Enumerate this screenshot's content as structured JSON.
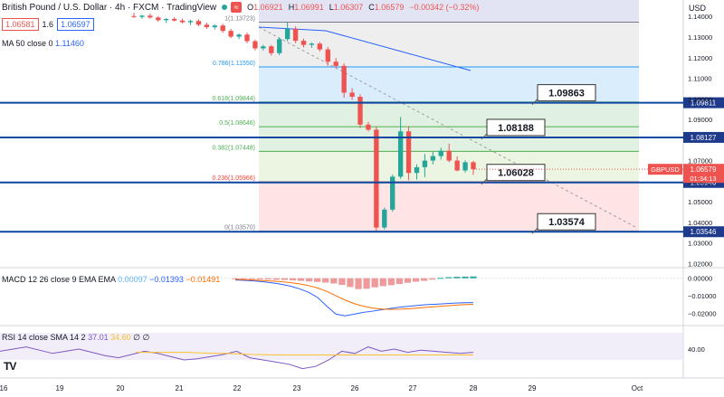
{
  "header": {
    "title": "British Pound / U.S. Dollar · 4h · FXCM · TradingView",
    "spread_icon": "spread-icon",
    "ohlc": [
      {
        "label": "O",
        "value": "1.06921"
      },
      {
        "label": "H",
        "value": "1.06991"
      },
      {
        "label": "L",
        "value": "1.06307"
      },
      {
        "label": "C",
        "value": "1.06579"
      },
      {
        "label": "",
        "value": "−0.00342 (−0.32%)"
      }
    ],
    "currency": "USD"
  },
  "trade_boxes": {
    "sell": "1.06581",
    "spread": "1.6",
    "buy": "1.06597"
  },
  "indicators": {
    "ma": {
      "label": "MA 50 close 0",
      "value": "1.11460"
    },
    "macd": {
      "label": "MACD 12 26 close 9 EMA EMA",
      "hist": "0.00097",
      "macd": "−0.01393",
      "signal": "−0.01491"
    },
    "rsi": {
      "label": "RSI 14 close SMA 14 2",
      "rsi": "37.01",
      "sma": "34.60",
      "extra1": "∅",
      "extra2": "∅"
    }
  },
  "logo": "TV",
  "chart_data": {
    "type": "candlestick",
    "symbol": "GBPUSD",
    "x_ticks": [
      "16",
      "19",
      "20",
      "21",
      "22",
      "23",
      "26",
      "27",
      "28",
      "29",
      "Oct"
    ],
    "y_ticks": [
      "1.14000",
      "1.13000",
      "1.12000",
      "1.11000",
      "1.10000",
      "1.09000",
      "1.07000",
      "1.06000",
      "1.05000",
      "1.04000",
      "1.03000",
      "1.02000"
    ],
    "current_price": {
      "label": "GBPUSD",
      "value": "1.06579",
      "countdown": "01:34:13"
    },
    "horizontal_levels": [
      "1.09811",
      "1.08127",
      "1.05940",
      "1.03546"
    ],
    "callouts": [
      "1.09863",
      "1.08188",
      "1.06028",
      "1.03574"
    ],
    "fib_levels": [
      {
        "label": "1(1.13723)",
        "value": 1.13723,
        "color": "#787b86"
      },
      {
        "label": "0.786(1.11550)",
        "value": 1.1155,
        "color": "#2196f3"
      },
      {
        "label": "0.618(1.09844)",
        "value": 1.09844,
        "color": "#4caf50"
      },
      {
        "label": "0.5(1.08646)",
        "value": 1.08646,
        "color": "#4caf50"
      },
      {
        "label": "0.382(1.07448)",
        "value": 1.07448,
        "color": "#4caf50"
      },
      {
        "label": "0.236(1.05966)",
        "value": 1.05966,
        "color": "#f44336"
      },
      {
        "label": "0(1.03570)",
        "value": 1.0357,
        "color": "#787b86"
      }
    ],
    "ylim": [
      1.018,
      1.148
    ],
    "candles": [
      [
        1.1402,
        1.1418,
        1.1392,
        1.1398
      ],
      [
        1.1398,
        1.1408,
        1.1388,
        1.1404
      ],
      [
        1.1404,
        1.1415,
        1.139,
        1.1395
      ],
      [
        1.1395,
        1.1402,
        1.1374,
        1.1382
      ],
      [
        1.1382,
        1.1392,
        1.1368,
        1.1388
      ],
      [
        1.1388,
        1.1396,
        1.1376,
        1.138
      ],
      [
        1.138,
        1.139,
        1.1366,
        1.1372
      ],
      [
        1.1372,
        1.1384,
        1.1358,
        1.1378
      ],
      [
        1.1378,
        1.1386,
        1.1352,
        1.136
      ],
      [
        1.136,
        1.137,
        1.134,
        1.1348
      ],
      [
        1.1348,
        1.1362,
        1.1336,
        1.1356
      ],
      [
        1.1356,
        1.1364,
        1.132,
        1.133
      ],
      [
        1.133,
        1.134,
        1.1295,
        1.1302
      ],
      [
        1.1302,
        1.1318,
        1.129,
        1.1312
      ],
      [
        1.1312,
        1.1322,
        1.127,
        1.128
      ],
      [
        1.128,
        1.1288,
        1.1235,
        1.1245
      ],
      [
        1.1245,
        1.1262,
        1.1235,
        1.1255
      ],
      [
        1.1255,
        1.1262,
        1.121,
        1.1222
      ],
      [
        1.1222,
        1.1298,
        1.1212,
        1.129
      ],
      [
        1.129,
        1.1372,
        1.128,
        1.134
      ],
      [
        1.134,
        1.1352,
        1.127,
        1.1282
      ],
      [
        1.1282,
        1.1292,
        1.125,
        1.1262
      ],
      [
        1.1262,
        1.1274,
        1.1248,
        1.1268
      ],
      [
        1.1268,
        1.1276,
        1.123,
        1.124
      ],
      [
        1.124,
        1.1252,
        1.116,
        1.118
      ],
      [
        1.118,
        1.1198,
        1.115,
        1.116
      ],
      [
        1.116,
        1.1172,
        1.1005,
        1.103
      ],
      [
        1.103,
        1.1052,
        1.0995,
        1.101
      ],
      [
        1.101,
        1.1022,
        1.0858,
        1.0875
      ],
      [
        1.0875,
        1.0888,
        1.0842,
        1.085
      ],
      [
        1.085,
        1.0865,
        1.0357,
        1.0375
      ],
      [
        1.0375,
        1.0472,
        1.0365,
        1.0462
      ],
      [
        1.0462,
        1.0632,
        1.0452,
        1.0622
      ],
      [
        1.0622,
        1.0912,
        1.0612,
        1.0842
      ],
      [
        1.0842,
        1.0866,
        1.0605,
        1.064
      ],
      [
        1.064,
        1.0682,
        1.0608,
        1.0668
      ],
      [
        1.0668,
        1.0732,
        1.062,
        1.07
      ],
      [
        1.07,
        1.0742,
        1.0682,
        1.0722
      ],
      [
        1.0722,
        1.0762,
        1.0705,
        1.0748
      ],
      [
        1.0748,
        1.0782,
        1.0692,
        1.07
      ],
      [
        1.07,
        1.072,
        1.0648,
        1.0652
      ],
      [
        1.0652,
        1.0702,
        1.0642,
        1.0692
      ],
      [
        1.0692,
        1.0699,
        1.0631,
        1.0658
      ]
    ],
    "ma50": [
      [
        286,
        30
      ],
      [
        360,
        34
      ],
      [
        440,
        56
      ],
      [
        520,
        78
      ]
    ],
    "macd": {
      "yticks": [
        "0.00000",
        "−0.01000",
        "−0.02000"
      ],
      "ylim": [
        -0.026,
        0.005
      ],
      "hist": [
        -0.0002,
        -0.0003,
        -0.0004,
        -0.0006,
        -0.0007,
        -0.0009,
        -0.001,
        -0.0012,
        -0.0015,
        -0.0018,
        -0.0021,
        -0.0025,
        -0.003,
        -0.0038,
        -0.005,
        -0.0062,
        -0.006,
        -0.0052,
        -0.0045,
        -0.004,
        -0.0033,
        -0.0026,
        -0.002,
        -0.0015,
        -0.0008,
        0.0002,
        0.0006,
        0.0008,
        0.0009,
        0.001
      ],
      "macd_line": [
        -0.001,
        -0.0012,
        -0.0015,
        -0.002,
        -0.0026,
        -0.0034,
        -0.0045,
        -0.006,
        -0.008,
        -0.011,
        -0.016,
        -0.0205,
        -0.0215,
        -0.0205,
        -0.0195,
        -0.0188,
        -0.018,
        -0.0172,
        -0.0165,
        -0.016,
        -0.0155,
        -0.015,
        -0.0148,
        -0.0145,
        -0.0142,
        -0.014,
        -0.0139
      ],
      "signal_line": [
        -0.0006,
        -0.0008,
        -0.001,
        -0.0013,
        -0.0016,
        -0.002,
        -0.0025,
        -0.0032,
        -0.0042,
        -0.0056,
        -0.0075,
        -0.01,
        -0.0125,
        -0.0145,
        -0.016,
        -0.017,
        -0.0176,
        -0.0178,
        -0.0177,
        -0.0174,
        -0.017,
        -0.0166,
        -0.0162,
        -0.0158,
        -0.0154,
        -0.0151,
        -0.0149
      ]
    },
    "rsi": {
      "yticks": [
        "40.00"
      ],
      "ylim": [
        15,
        60
      ],
      "rsi_line": [
        38,
        40,
        42,
        39,
        36,
        38,
        40,
        37,
        34,
        32,
        35,
        38,
        36,
        33,
        30,
        31,
        33,
        35,
        38,
        32,
        30,
        28,
        26,
        22,
        24,
        30,
        38,
        36,
        42,
        38,
        40,
        37,
        39,
        38,
        37,
        36,
        37
      ],
      "sma_line": [
        37,
        37,
        37,
        37,
        37,
        36.5,
        36,
        36,
        35.5,
        35,
        34.8,
        34.6,
        34.6,
        34.6,
        34.6,
        34.6,
        34.6,
        34.6,
        34.6,
        34.6,
        34.6,
        34.6,
        34.6,
        34.6,
        34.6,
        34.6,
        34.6
      ]
    }
  }
}
